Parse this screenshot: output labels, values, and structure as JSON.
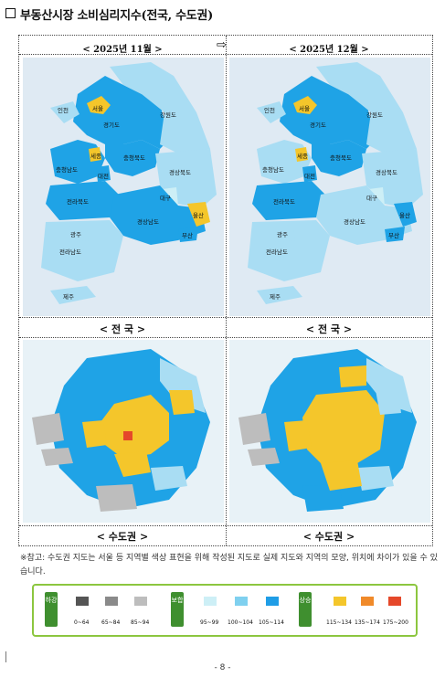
{
  "title": "부동산시장 소비심리지수(전국, 수도권)",
  "months": {
    "left": "< 2025년 11월 >",
    "right": "< 2025년 12월 >"
  },
  "arrow_icon": "right-arrow-icon",
  "captions": {
    "nation_left": "< 전 국 >",
    "nation_right": "< 전 국 >",
    "capital_left": "< 수도권 >",
    "capital_right": "< 수도권 >"
  },
  "regions": {
    "incheon": "인천",
    "seoul": "서울",
    "gyeonggi": "경기도",
    "gangwon": "강원도",
    "chungbuk": "충청북도",
    "sejong": "세종",
    "chungnam": "충청남도",
    "daejeon": "대전",
    "gyeongbuk": "경상북도",
    "daegu": "대구",
    "jeonbuk": "전라북도",
    "ulsan": "울산",
    "gyeongnam": "경상남도",
    "busan": "부산",
    "gwangju": "광주",
    "jeonnam": "전라남도",
    "jeju": "제주"
  },
  "note": "※참고: 수도권 지도는 서울 등 지역별 색상 표현을 위해 작성된 지도로 실제 지도와 지역의 모양, 위치에 차이가 있을 수 있습니다.",
  "legend": {
    "groups": [
      {
        "tag": "하강",
        "color": "#3f8f2f",
        "items": [
          {
            "range": "0~64",
            "color": "#555555"
          },
          {
            "range": "65~84",
            "color": "#8a8a8a"
          },
          {
            "range": "85~94",
            "color": "#bdbdbd"
          }
        ]
      },
      {
        "tag": "보합",
        "color": "#3f8f2f",
        "items": [
          {
            "range": "95~99",
            "color": "#cdeff6"
          },
          {
            "range": "100~104",
            "color": "#7fd0ef"
          },
          {
            "range": "105~114",
            "color": "#1f9de6"
          }
        ]
      },
      {
        "tag": "상승",
        "color": "#3f8f2f",
        "items": [
          {
            "range": "115~134",
            "color": "#f4c62b"
          },
          {
            "range": "135~174",
            "color": "#f08a2a"
          },
          {
            "range": "175~200",
            "color": "#e5482a"
          }
        ]
      }
    ]
  },
  "page_number": "- 8 -",
  "colors": {
    "light": "#a9ddf3",
    "mid": "#1fa3e6",
    "yellow": "#f4c62b",
    "grey": "#bdbdbd",
    "sea": "#dfeaf3"
  }
}
